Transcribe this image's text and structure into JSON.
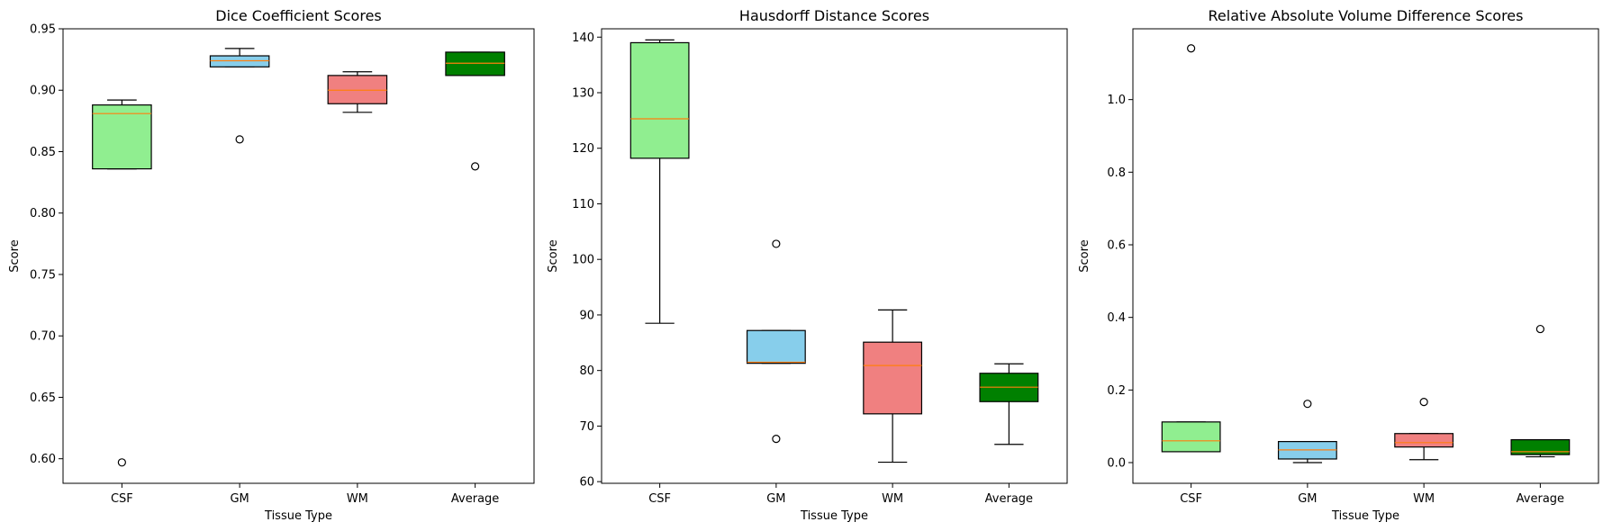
{
  "figure": {
    "background": "#ffffff",
    "median_color": "#ff7f0e",
    "category_colors": [
      "#90ee90",
      "#87ceeb",
      "#f08080",
      "#008000"
    ]
  },
  "chart_data": [
    {
      "type": "box",
      "title": "Dice Coefficient Scores",
      "xlabel": "Tissue Type",
      "ylabel": "Score",
      "categories": [
        "CSF",
        "GM",
        "WM",
        "Average"
      ],
      "ylim": [
        0.58,
        0.95
      ],
      "yticks": [
        0.6,
        0.65,
        0.7,
        0.75,
        0.8,
        0.85,
        0.9,
        0.95
      ],
      "ytick_labels": [
        "0.60",
        "0.65",
        "0.70",
        "0.75",
        "0.80",
        "0.85",
        "0.90",
        "0.95"
      ],
      "grid": false,
      "boxes": [
        {
          "whisker_low": 0.836,
          "q1": 0.836,
          "median": 0.881,
          "q3": 0.888,
          "whisker_high": 0.892,
          "outliers": [
            0.597
          ]
        },
        {
          "whisker_low": 0.919,
          "q1": 0.919,
          "median": 0.924,
          "q3": 0.928,
          "whisker_high": 0.934,
          "outliers": [
            0.86
          ]
        },
        {
          "whisker_low": 0.882,
          "q1": 0.889,
          "median": 0.9,
          "q3": 0.912,
          "whisker_high": 0.915,
          "outliers": []
        },
        {
          "whisker_low": 0.912,
          "q1": 0.912,
          "median": 0.922,
          "q3": 0.931,
          "whisker_high": 0.931,
          "outliers": [
            0.838
          ]
        }
      ]
    },
    {
      "type": "box",
      "title": "Hausdorff Distance Scores",
      "xlabel": "Tissue Type",
      "ylabel": "Score",
      "categories": [
        "CSF",
        "GM",
        "WM",
        "Average"
      ],
      "ylim": [
        59.7,
        141.5
      ],
      "yticks": [
        60,
        70,
        80,
        90,
        100,
        110,
        120,
        130,
        140
      ],
      "ytick_labels": [
        "60",
        "70",
        "80",
        "90",
        "100",
        "110",
        "120",
        "130",
        "140"
      ],
      "grid": false,
      "boxes": [
        {
          "whisker_low": 88.5,
          "q1": 118.2,
          "median": 125.3,
          "q3": 139.0,
          "whisker_high": 139.5,
          "outliers": []
        },
        {
          "whisker_low": 81.3,
          "q1": 81.3,
          "median": 81.5,
          "q3": 87.2,
          "whisker_high": 87.2,
          "outliers": [
            102.8,
            67.7
          ]
        },
        {
          "whisker_low": 63.5,
          "q1": 72.2,
          "median": 80.9,
          "q3": 85.1,
          "whisker_high": 90.9,
          "outliers": []
        },
        {
          "whisker_low": 66.7,
          "q1": 74.4,
          "median": 77.0,
          "q3": 79.5,
          "whisker_high": 81.2,
          "outliers": []
        }
      ]
    },
    {
      "type": "box",
      "title": "Relative Absolute Volume Difference Scores",
      "xlabel": "Tissue Type",
      "ylabel": "Score",
      "categories": [
        "CSF",
        "GM",
        "WM",
        "Average"
      ],
      "ylim": [
        -0.057,
        1.195
      ],
      "yticks": [
        0.0,
        0.2,
        0.4,
        0.6,
        0.8,
        1.0
      ],
      "ytick_labels": [
        "0.0",
        "0.2",
        "0.4",
        "0.6",
        "0.8",
        "1.0"
      ],
      "grid": false,
      "boxes": [
        {
          "whisker_low": 0.03,
          "q1": 0.03,
          "median": 0.06,
          "q3": 0.112,
          "whisker_high": 0.112,
          "outliers": [
            1.141
          ]
        },
        {
          "whisker_low": 0.0,
          "q1": 0.01,
          "median": 0.035,
          "q3": 0.058,
          "whisker_high": 0.058,
          "outliers": [
            0.162
          ]
        },
        {
          "whisker_low": 0.008,
          "q1": 0.043,
          "median": 0.055,
          "q3": 0.08,
          "whisker_high": 0.08,
          "outliers": [
            0.167
          ]
        },
        {
          "whisker_low": 0.016,
          "q1": 0.022,
          "median": 0.03,
          "q3": 0.063,
          "whisker_high": 0.063,
          "outliers": [
            0.368
          ]
        }
      ]
    }
  ]
}
